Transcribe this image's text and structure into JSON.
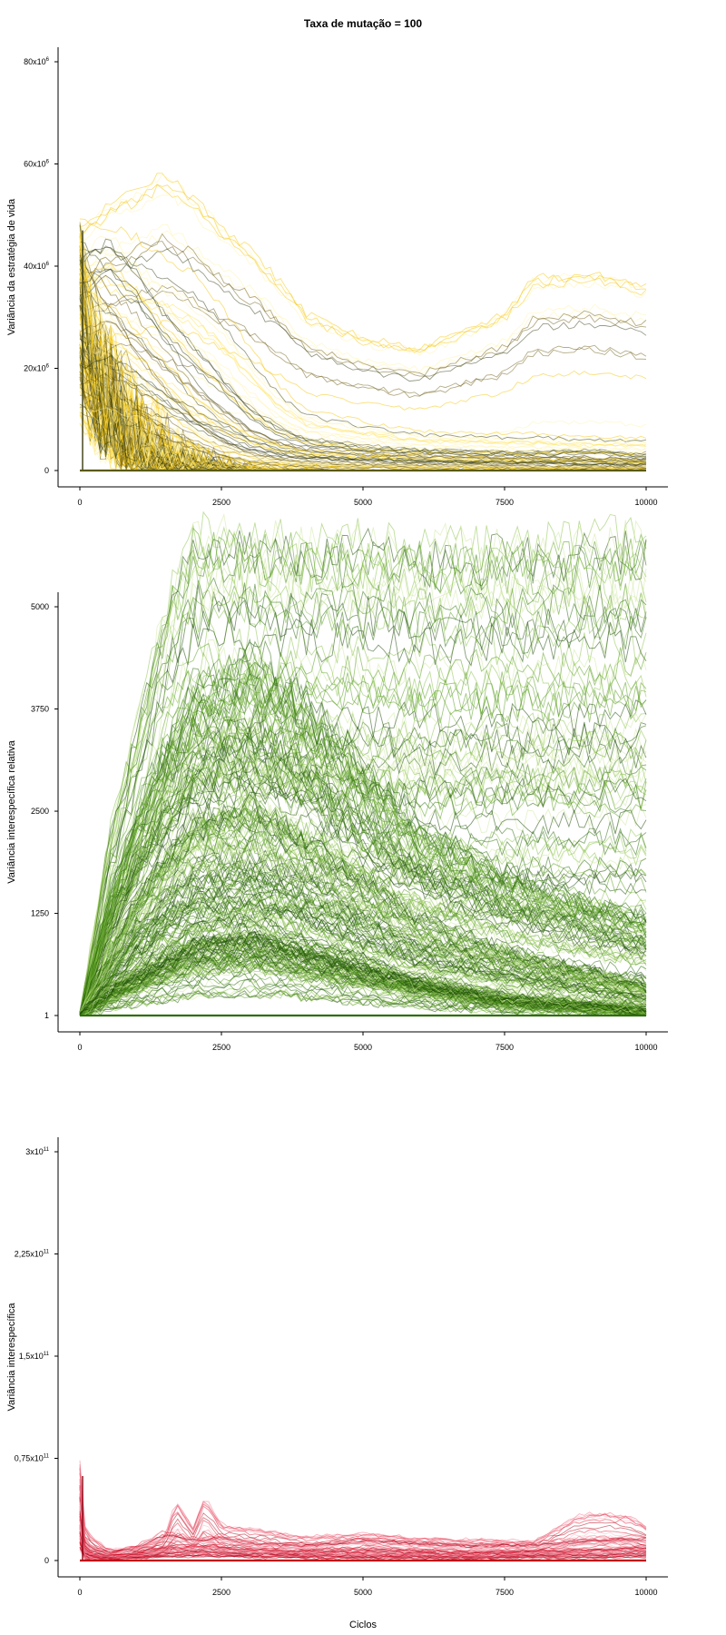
{
  "title": "Taxa de mutação = 100",
  "xlabel": "Ciclos",
  "colors": {
    "panel1": [
      "#fff3a8",
      "#ffe14d",
      "#f5c400",
      "#6b5a10",
      "#2f3a10"
    ],
    "panel2": [
      "#cfe8a0",
      "#8bc34a",
      "#5a9e1e",
      "#2e6e0c",
      "#1e4a08"
    ],
    "panel3": [
      "#f7b6c1",
      "#ef6a80",
      "#e0112b",
      "#b00018"
    ]
  },
  "chart_data": [
    {
      "type": "line",
      "panel": "top",
      "ylabel": "Variância da estratégia de vida",
      "xlim": [
        0,
        10000
      ],
      "ylim": [
        0,
        85000000
      ],
      "x_ticks": [
        0,
        2500,
        5000,
        7500,
        10000
      ],
      "x_tick_labels": [
        "0",
        "2500",
        "5000",
        "7500",
        "10000"
      ],
      "y_ticks": [
        0,
        20000000,
        40000000,
        60000000,
        80000000
      ],
      "y_tick_labels": [
        {
          "base": "0",
          "sup": ""
        },
        {
          "base": "20x10",
          "sup": "6"
        },
        {
          "base": "40x10",
          "sup": "6"
        },
        {
          "base": "60x10",
          "sup": "6"
        },
        {
          "base": "80x10",
          "sup": "6"
        }
      ],
      "series": [
        {
          "x": [
            0,
            500,
            1000,
            1500,
            2000,
            2500,
            3000,
            3500,
            4000,
            5000,
            6000,
            7500,
            8000,
            9000,
            10000
          ],
          "values": [
            42000000,
            46000000,
            48000000,
            51000000,
            47000000,
            42000000,
            38000000,
            33000000,
            27000000,
            23000000,
            21000000,
            27000000,
            33000000,
            34000000,
            32000000
          ]
        },
        {
          "x": [
            0,
            500,
            1000,
            1500,
            2000,
            2500,
            3000,
            3500,
            4000,
            5000,
            6000,
            7500,
            8000,
            9000,
            10000
          ],
          "values": [
            41000000,
            40000000,
            38000000,
            35000000,
            32000000,
            27000000,
            20000000,
            14000000,
            10000000,
            8000000,
            6500000,
            6000000,
            6000000,
            5500000,
            5500000
          ]
        },
        {
          "x": [
            0,
            500,
            1000,
            1500,
            2000,
            2500,
            3000,
            3500,
            4000,
            5000,
            6000,
            7500,
            8000,
            9000,
            10000
          ],
          "values": [
            38000000,
            33000000,
            28000000,
            22000000,
            15000000,
            10000000,
            7000000,
            5000000,
            4000000,
            3500000,
            3000000,
            2500000,
            2500000,
            2000000,
            2000000
          ]
        },
        {
          "x": [
            0,
            500,
            1000,
            1500,
            2000,
            2500,
            3000,
            3500,
            4000,
            5000,
            6000,
            7500,
            8000,
            9000,
            10000
          ],
          "values": [
            36000000,
            28000000,
            20000000,
            14000000,
            9000000,
            5000000,
            3000000,
            2000000,
            1500000,
            1000000,
            900000,
            800000,
            700000,
            700000,
            600000
          ]
        },
        {
          "x": [
            0,
            500,
            1000,
            1500,
            2000,
            2500,
            3000,
            3500,
            4000,
            5000,
            6000,
            7500,
            8000,
            9000,
            10000
          ],
          "values": [
            40000000,
            44000000,
            38000000,
            30000000,
            24000000,
            18000000,
            12000000,
            8000000,
            6000000,
            4500000,
            4000000,
            3500000,
            3500000,
            4000000,
            3000000
          ]
        }
      ]
    },
    {
      "type": "line",
      "panel": "middle",
      "ylabel": "Variância interespecífica relativa",
      "xlim": [
        0,
        10000
      ],
      "ylim": [
        -200,
        5200
      ],
      "x_ticks": [
        0,
        2500,
        5000,
        7500,
        10000
      ],
      "x_tick_labels": [
        "0",
        "2500",
        "5000",
        "7500",
        "10000"
      ],
      "y_ticks": [
        1,
        1250,
        2500,
        3750,
        5000
      ],
      "y_tick_labels": [
        {
          "base": "1",
          "sup": ""
        },
        {
          "base": "1250",
          "sup": ""
        },
        {
          "base": "2500",
          "sup": ""
        },
        {
          "base": "3750",
          "sup": ""
        },
        {
          "base": "5000",
          "sup": ""
        }
      ],
      "series": [
        {
          "x": [
            0,
            500,
            1000,
            1500,
            2000,
            3000,
            4000,
            5000,
            6000,
            7500,
            10000
          ],
          "values": [
            1,
            1800,
            3000,
            4200,
            5000,
            4950,
            4900,
            4900,
            4850,
            4850,
            4900
          ]
        },
        {
          "x": [
            0,
            500,
            1000,
            1500,
            2000,
            3000,
            4000,
            5000,
            6000,
            7500,
            10000
          ],
          "values": [
            1,
            1200,
            2100,
            2800,
            3400,
            3800,
            3300,
            2600,
            2000,
            1500,
            1000
          ]
        },
        {
          "x": [
            0,
            500,
            1000,
            1500,
            2000,
            3000,
            4000,
            5000,
            6000,
            7500,
            10000
          ],
          "values": [
            1,
            600,
            1200,
            1600,
            2000,
            2200,
            1800,
            1400,
            1000,
            700,
            300
          ]
        },
        {
          "x": [
            0,
            500,
            1000,
            1500,
            2000,
            3000,
            4000,
            5000,
            6000,
            7500,
            10000
          ],
          "values": [
            1,
            300,
            500,
            700,
            900,
            1000,
            800,
            600,
            400,
            200,
            50
          ]
        }
      ]
    },
    {
      "type": "line",
      "panel": "bottom",
      "ylabel": "Variância interespecífica",
      "xlim": [
        0,
        10000
      ],
      "ylim": [
        -6000000000,
        315000000000
      ],
      "x_ticks": [
        0,
        2500,
        5000,
        7500,
        10000
      ],
      "x_tick_labels": [
        "0",
        "2500",
        "5000",
        "7500",
        "10000"
      ],
      "y_ticks": [
        0,
        75000000000,
        150000000000,
        225000000000,
        300000000000
      ],
      "y_tick_labels": [
        {
          "base": "0",
          "sup": ""
        },
        {
          "base": "0,75x10",
          "sup": "11"
        },
        {
          "base": "1,5x10",
          "sup": "11"
        },
        {
          "base": "2,25x10",
          "sup": "11"
        },
        {
          "base": "3x10",
          "sup": "11"
        }
      ],
      "series": [
        {
          "x": [
            0,
            100,
            500,
            1000,
            1500,
            1700,
            2000,
            2200,
            2500,
            3000,
            4000,
            5000,
            6000,
            7000,
            8000,
            8800,
            9200,
            9700,
            10000
          ],
          "values": [
            62000000000,
            18000000000,
            7000000000,
            8000000000,
            14000000000,
            38000000000,
            20000000000,
            40000000000,
            22000000000,
            20000000000,
            15000000000,
            17000000000,
            14000000000,
            13000000000,
            12000000000,
            28000000000,
            30000000000,
            28000000000,
            22000000000
          ]
        },
        {
          "x": [
            0,
            100,
            500,
            1000,
            1500,
            2000,
            2500,
            3000,
            4000,
            5000,
            6000,
            7000,
            8000,
            9000,
            10000
          ],
          "values": [
            45000000000,
            10000000000,
            5000000000,
            9000000000,
            18000000000,
            14000000000,
            16000000000,
            12000000000,
            10000000000,
            14000000000,
            12000000000,
            10000000000,
            11000000000,
            14000000000,
            15000000000
          ]
        },
        {
          "x": [
            0,
            100,
            500,
            1000,
            1500,
            2000,
            2500,
            3000,
            4000,
            5000,
            6000,
            7000,
            8000,
            9000,
            10000
          ],
          "values": [
            30000000000,
            6000000000,
            3000000000,
            5000000000,
            8000000000,
            10000000000,
            9000000000,
            7000000000,
            6000000000,
            5000000000,
            5000000000,
            4000000000,
            6000000000,
            6000000000,
            8000000000
          ]
        }
      ]
    }
  ]
}
